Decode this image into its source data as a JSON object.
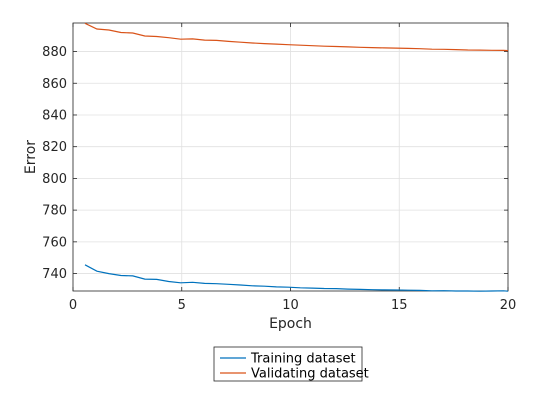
{
  "chart_data": {
    "type": "line",
    "xlabel": "Epoch",
    "ylabel": "Error",
    "xlim": [
      0,
      20
    ],
    "ylim": [
      729,
      898
    ],
    "x_ticks": [
      0,
      5,
      10,
      15,
      20
    ],
    "y_ticks": [
      740,
      760,
      780,
      800,
      820,
      840,
      860,
      880
    ],
    "grid": true,
    "legend_position": "bottom-outside",
    "x": [
      0.55,
      1.1,
      1.65,
      2.2,
      2.75,
      3.3,
      3.85,
      4.4,
      4.95,
      5.5,
      6.05,
      6.6,
      7.15,
      7.7,
      8.25,
      8.8,
      9.35,
      9.9,
      10.45,
      11.0,
      11.55,
      12.1,
      12.65,
      13.2,
      13.75,
      14.3,
      14.85,
      15.4,
      15.95,
      16.5,
      17.05,
      17.6,
      18.15,
      18.7,
      19.25,
      19.8,
      20.0
    ],
    "series": [
      {
        "name": "Training dataset",
        "color": "#0072BD",
        "values": [
          745.5,
          741.5,
          740.0,
          738.8,
          738.5,
          736.5,
          736.3,
          735.0,
          734.2,
          734.5,
          733.8,
          733.6,
          733.2,
          732.8,
          732.3,
          732.0,
          731.6,
          731.4,
          731.0,
          730.8,
          730.6,
          730.5,
          730.2,
          730.0,
          729.8,
          729.7,
          729.6,
          729.5,
          729.4,
          729.1,
          729.2,
          729.0,
          729.0,
          728.9,
          729.0,
          729.1,
          728.9
        ]
      },
      {
        "name": "Validating dataset",
        "color": "#D95319",
        "values": [
          897.8,
          894.2,
          893.6,
          892.0,
          891.7,
          889.8,
          889.5,
          888.7,
          887.8,
          888.0,
          887.2,
          887.0,
          886.4,
          885.9,
          885.4,
          885.0,
          884.7,
          884.3,
          884.0,
          883.7,
          883.4,
          883.2,
          882.9,
          882.7,
          882.5,
          882.3,
          882.2,
          882.0,
          881.8,
          881.5,
          881.4,
          881.2,
          881.0,
          880.9,
          880.8,
          880.7,
          880.6
        ]
      }
    ]
  }
}
